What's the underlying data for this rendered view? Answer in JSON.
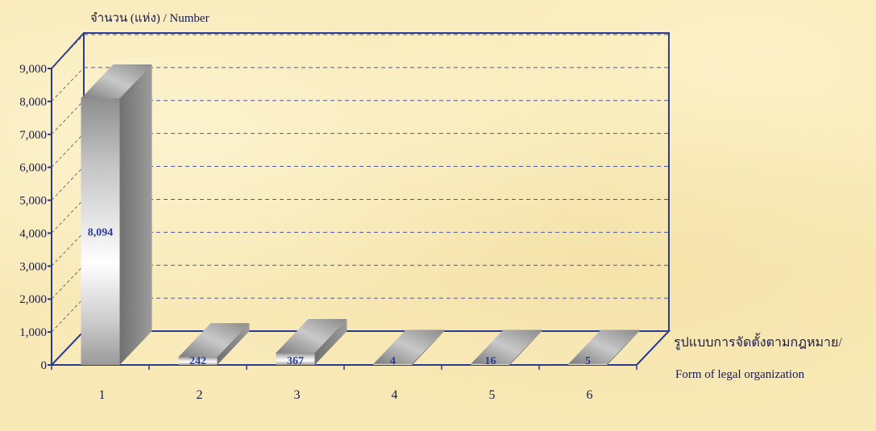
{
  "chart_data": {
    "type": "bar",
    "y_axis_title": "จำนวน (แห่ง) / Number",
    "x_axis_title_line1": "รูปแบบการจัดตั้งตามกฎหมาย/",
    "x_axis_title_line2": "Form of  legal organization",
    "categories": [
      "1",
      "2",
      "3",
      "4",
      "5",
      "6"
    ],
    "values": [
      8094,
      242,
      367,
      4,
      16,
      5
    ],
    "value_labels": [
      "8,094",
      "242",
      "367",
      "4",
      "16",
      "5"
    ],
    "ylim": [
      0,
      9000
    ],
    "y_ticks": [
      0,
      1000,
      2000,
      3000,
      4000,
      5000,
      6000,
      7000,
      8000,
      9000
    ],
    "y_tick_labels": [
      "0",
      "1,000",
      "2,000",
      "3,000",
      "4,000",
      "5,000",
      "6,000",
      "7,000",
      "8,000",
      "9,000"
    ],
    "grid": "dashed horizontal",
    "style": "3d-bar",
    "colors": {
      "axis": "#2b3a8f",
      "grid": "#4a58a8",
      "bar_light": "#ffffff",
      "bar_mid": "#b8b8b8",
      "bar_dark": "#7a7a7a",
      "label": "#2a3f9a"
    }
  }
}
